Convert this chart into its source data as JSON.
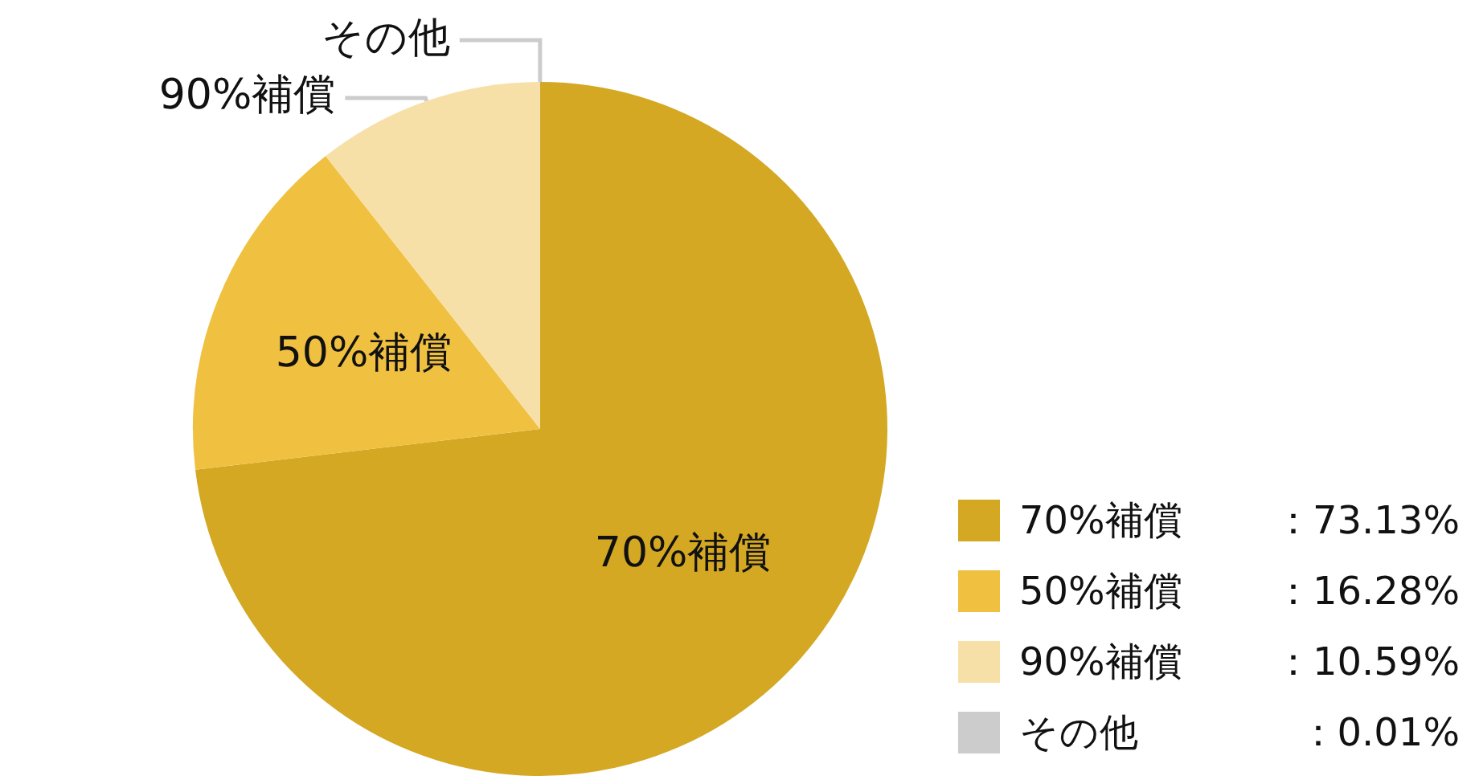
{
  "chart_data": {
    "type": "pie",
    "categories": [
      "70%補償",
      "50%補償",
      "90%補償",
      "その他"
    ],
    "values": [
      73.13,
      16.28,
      10.59,
      0.01
    ],
    "value_labels": [
      "：73.13%",
      "：16.28%",
      "：10.59%",
      "：0.01%"
    ],
    "colors": [
      "#d4a823",
      "#f0c040",
      "#f7e0a8",
      "#cccccc"
    ],
    "legend": "bottom right"
  }
}
